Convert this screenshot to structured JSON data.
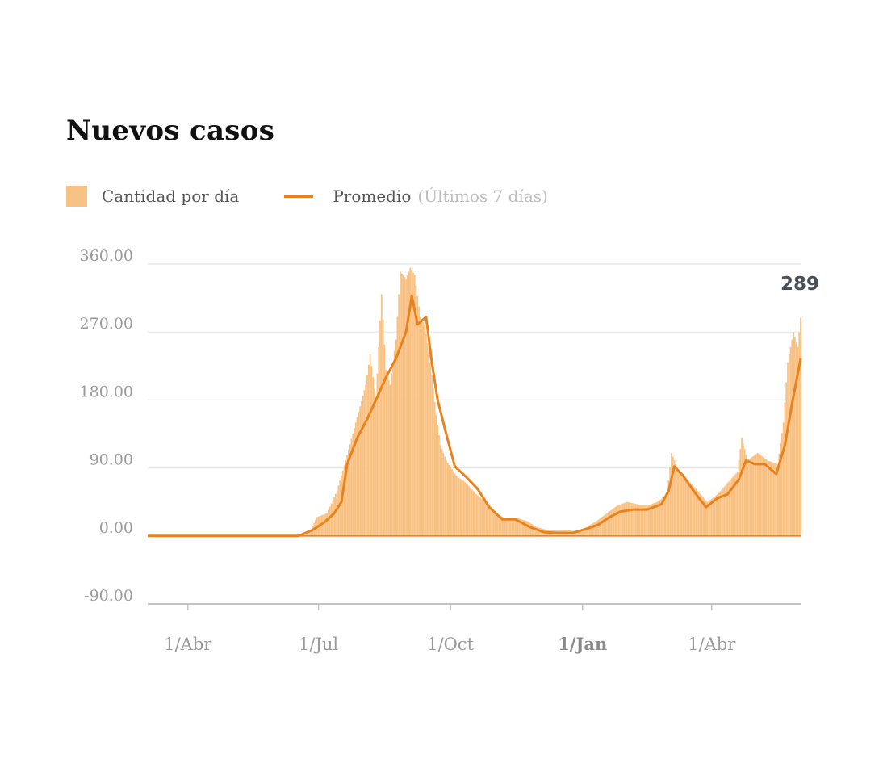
{
  "colors": {
    "bars": "#f9c285",
    "line": "#e9821d",
    "grid": "#e6e6e6",
    "axis": "#c4c4c4",
    "text": "#9a9a9a"
  },
  "legend": {
    "bars_label": "Cantidad por día",
    "line_label": "Promedio",
    "line_note": "(Últimos 7 días)"
  },
  "chart_data": {
    "type": "bar",
    "title": "Nuevos casos",
    "xlabel": "",
    "ylabel": "",
    "ylim": [
      -90,
      360
    ],
    "yticks": [
      "360.00",
      "270.00",
      "180.00",
      "90.00",
      "0.00",
      "-90.00"
    ],
    "ytick_values": [
      360,
      270,
      180,
      90,
      0,
      -90
    ],
    "xticks": [
      {
        "label": "1/Abr",
        "date": "2020-04-01",
        "bold": false
      },
      {
        "label": "1/Jul",
        "date": "2020-07-01",
        "bold": false
      },
      {
        "label": "1/Oct",
        "date": "2020-10-01",
        "bold": false
      },
      {
        "label": "1/Jan",
        "date": "2021-01-01",
        "bold": true
      },
      {
        "label": "1/Abr",
        "date": "2021-04-01",
        "bold": false
      }
    ],
    "x_range": [
      "2020-03-04",
      "2021-06-02"
    ],
    "grid": true,
    "legend_position": "top-left",
    "last_value_label": "289",
    "series": [
      {
        "name": "Cantidad por día",
        "type": "bar",
        "points": [
          [
            "2020-03-04",
            0
          ],
          [
            "2020-06-15",
            0
          ],
          [
            "2020-06-25",
            5
          ],
          [
            "2020-06-30",
            25
          ],
          [
            "2020-07-07",
            30
          ],
          [
            "2020-07-14",
            60
          ],
          [
            "2020-07-20",
            100
          ],
          [
            "2020-07-27",
            150
          ],
          [
            "2020-08-03",
            200
          ],
          [
            "2020-08-06",
            240
          ],
          [
            "2020-08-10",
            180
          ],
          [
            "2020-08-14",
            320
          ],
          [
            "2020-08-17",
            220
          ],
          [
            "2020-08-20",
            200
          ],
          [
            "2020-08-24",
            260
          ],
          [
            "2020-08-27",
            350
          ],
          [
            "2020-08-31",
            340
          ],
          [
            "2020-09-03",
            355
          ],
          [
            "2020-09-06",
            345
          ],
          [
            "2020-09-10",
            290
          ],
          [
            "2020-09-13",
            280
          ],
          [
            "2020-09-17",
            230
          ],
          [
            "2020-09-21",
            160
          ],
          [
            "2020-09-24",
            120
          ],
          [
            "2020-09-28",
            100
          ],
          [
            "2020-10-05",
            80
          ],
          [
            "2020-10-12",
            70
          ],
          [
            "2020-10-19",
            55
          ],
          [
            "2020-10-26",
            45
          ],
          [
            "2020-11-02",
            30
          ],
          [
            "2020-11-09",
            22
          ],
          [
            "2020-11-16",
            24
          ],
          [
            "2020-11-23",
            20
          ],
          [
            "2020-11-30",
            12
          ],
          [
            "2020-12-07",
            8
          ],
          [
            "2020-12-14",
            7
          ],
          [
            "2020-12-21",
            8
          ],
          [
            "2020-12-28",
            6
          ],
          [
            "2021-01-04",
            12
          ],
          [
            "2021-01-11",
            20
          ],
          [
            "2021-01-18",
            30
          ],
          [
            "2021-01-25",
            40
          ],
          [
            "2021-02-01",
            45
          ],
          [
            "2021-02-08",
            42
          ],
          [
            "2021-02-15",
            40
          ],
          [
            "2021-02-22",
            45
          ],
          [
            "2021-03-01",
            55
          ],
          [
            "2021-03-04",
            110
          ],
          [
            "2021-03-08",
            90
          ],
          [
            "2021-03-15",
            75
          ],
          [
            "2021-03-22",
            60
          ],
          [
            "2021-03-29",
            45
          ],
          [
            "2021-04-05",
            55
          ],
          [
            "2021-04-12",
            70
          ],
          [
            "2021-04-19",
            85
          ],
          [
            "2021-04-22",
            130
          ],
          [
            "2021-04-26",
            100
          ],
          [
            "2021-05-03",
            110
          ],
          [
            "2021-05-10",
            100
          ],
          [
            "2021-05-17",
            95
          ],
          [
            "2021-05-21",
            150
          ],
          [
            "2021-05-24",
            230
          ],
          [
            "2021-05-28",
            270
          ],
          [
            "2021-05-31",
            250
          ],
          [
            "2021-06-02",
            289
          ]
        ]
      },
      {
        "name": "Promedio",
        "type": "line",
        "points": [
          [
            "2020-03-04",
            0
          ],
          [
            "2020-06-17",
            0
          ],
          [
            "2020-06-27",
            8
          ],
          [
            "2020-07-05",
            18
          ],
          [
            "2020-07-12",
            30
          ],
          [
            "2020-07-17",
            45
          ],
          [
            "2020-07-21",
            95
          ],
          [
            "2020-07-28",
            130
          ],
          [
            "2020-08-04",
            155
          ],
          [
            "2020-08-10",
            180
          ],
          [
            "2020-08-17",
            210
          ],
          [
            "2020-08-24",
            235
          ],
          [
            "2020-08-31",
            270
          ],
          [
            "2020-09-04",
            318
          ],
          [
            "2020-09-08",
            280
          ],
          [
            "2020-09-14",
            290
          ],
          [
            "2020-09-18",
            230
          ],
          [
            "2020-09-22",
            180
          ],
          [
            "2020-09-28",
            135
          ],
          [
            "2020-10-04",
            92
          ],
          [
            "2020-10-12",
            78
          ],
          [
            "2020-10-20",
            62
          ],
          [
            "2020-10-28",
            38
          ],
          [
            "2020-11-06",
            22
          ],
          [
            "2020-11-15",
            22
          ],
          [
            "2020-11-25",
            12
          ],
          [
            "2020-12-05",
            5
          ],
          [
            "2020-12-15",
            4
          ],
          [
            "2020-12-25",
            4
          ],
          [
            "2021-01-05",
            10
          ],
          [
            "2021-01-12",
            15
          ],
          [
            "2021-01-20",
            25
          ],
          [
            "2021-01-27",
            32
          ],
          [
            "2021-02-05",
            35
          ],
          [
            "2021-02-15",
            35
          ],
          [
            "2021-02-25",
            42
          ],
          [
            "2021-03-02",
            60
          ],
          [
            "2021-03-06",
            92
          ],
          [
            "2021-03-12",
            80
          ],
          [
            "2021-03-20",
            58
          ],
          [
            "2021-03-28",
            38
          ],
          [
            "2021-04-05",
            50
          ],
          [
            "2021-04-12",
            55
          ],
          [
            "2021-04-20",
            75
          ],
          [
            "2021-04-25",
            100
          ],
          [
            "2021-05-01",
            95
          ],
          [
            "2021-05-08",
            95
          ],
          [
            "2021-05-16",
            82
          ],
          [
            "2021-05-22",
            120
          ],
          [
            "2021-05-27",
            175
          ],
          [
            "2021-06-02",
            235
          ]
        ]
      }
    ]
  }
}
